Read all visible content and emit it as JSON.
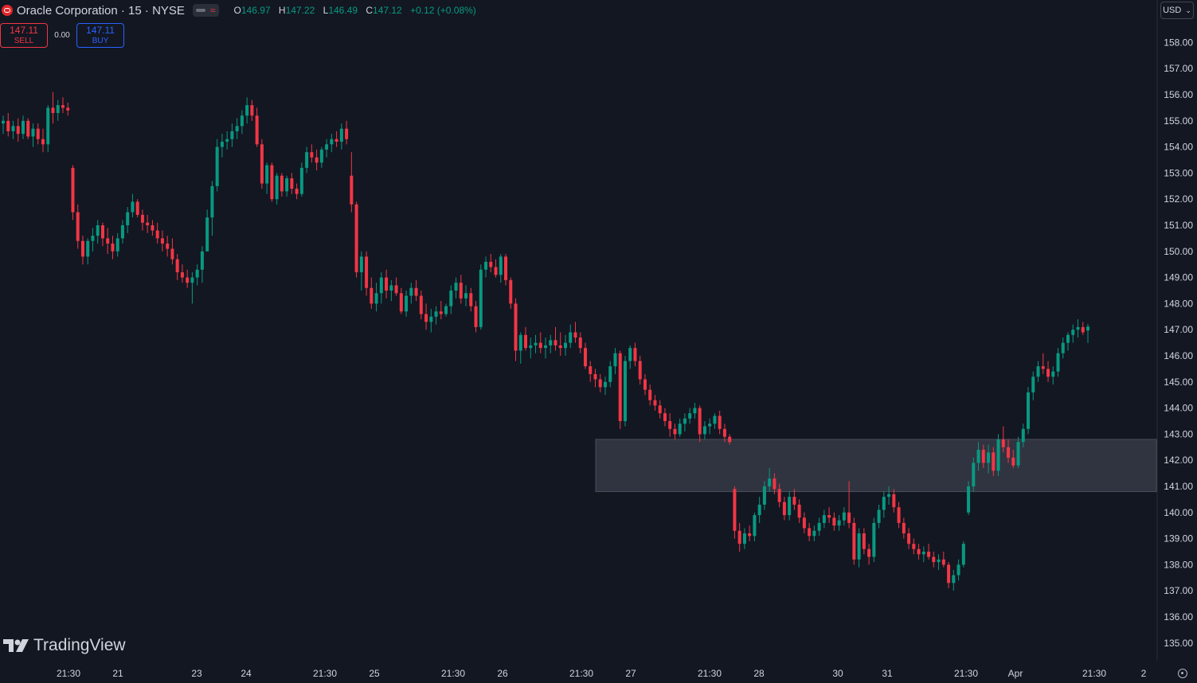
{
  "header": {
    "symbol": "Oracle Corporation · 15 · NYSE",
    "ohlc": {
      "o_label": "O",
      "o": "146.97",
      "h_label": "H",
      "h": "147.22",
      "l_label": "L",
      "l": "146.49",
      "c_label": "C",
      "c": "147.12",
      "change": "+0.12 (+0.08%)"
    },
    "chip_symbol": "≈"
  },
  "trade": {
    "sell_price": "147.11",
    "sell_label": "SELL",
    "spread": "0.00",
    "buy_price": "147.11",
    "buy_label": "BUY"
  },
  "currency": "USD",
  "branding": "TradingView",
  "colors": {
    "background": "#131722",
    "up": "#089981",
    "down": "#f23645",
    "zone": "#363a45"
  },
  "chart_data": {
    "type": "candlestick",
    "y_ticks": [
      135,
      136,
      137,
      138,
      139,
      140,
      141,
      142,
      143,
      144,
      145,
      146,
      147,
      148,
      149,
      150,
      151,
      152,
      153,
      154,
      155,
      156,
      157,
      158
    ],
    "x_ticks": [
      "21:30",
      "21",
      "23",
      "24",
      "21:30",
      "25",
      "21:30",
      "26",
      "21:30",
      "27",
      "21:30",
      "28",
      "30",
      "31",
      "21:30",
      "Apr",
      "21:30",
      "2"
    ],
    "zone": {
      "low": 140.8,
      "high": 142.8
    },
    "candles": [
      [
        154.9,
        155.2,
        154.5,
        155.0
      ],
      [
        155.0,
        155.3,
        154.4,
        154.6
      ],
      [
        154.6,
        155.0,
        154.3,
        154.8
      ],
      [
        154.8,
        155.1,
        154.2,
        154.5
      ],
      [
        154.5,
        155.2,
        154.3,
        155.0
      ],
      [
        155.0,
        155.1,
        154.3,
        154.4
      ],
      [
        154.4,
        154.9,
        154.0,
        154.7
      ],
      [
        154.7,
        154.9,
        154.1,
        154.3
      ],
      [
        154.3,
        154.7,
        153.8,
        154.1
      ],
      [
        154.1,
        155.6,
        153.8,
        155.5
      ],
      [
        155.5,
        156.1,
        154.9,
        155.3
      ],
      [
        155.3,
        155.8,
        155.0,
        155.6
      ],
      [
        155.6,
        155.9,
        155.3,
        155.5
      ],
      [
        155.5,
        155.7,
        155.2,
        155.4
      ],
      [
        153.2,
        153.3,
        151.2,
        151.5
      ],
      [
        151.5,
        151.8,
        150.1,
        150.4
      ],
      [
        150.4,
        150.6,
        149.5,
        149.8
      ],
      [
        149.8,
        150.5,
        149.5,
        150.4
      ],
      [
        150.4,
        150.9,
        150.0,
        150.6
      ],
      [
        150.6,
        151.2,
        150.3,
        151.0
      ],
      [
        151.0,
        151.1,
        150.2,
        150.5
      ],
      [
        150.5,
        150.9,
        149.9,
        150.3
      ],
      [
        150.3,
        150.6,
        149.7,
        150.0
      ],
      [
        150.0,
        150.7,
        149.8,
        150.5
      ],
      [
        150.5,
        151.2,
        150.3,
        151.0
      ],
      [
        151.0,
        151.7,
        150.7,
        151.5
      ],
      [
        151.5,
        152.2,
        151.3,
        151.9
      ],
      [
        151.9,
        152.0,
        151.3,
        151.4
      ],
      [
        151.4,
        151.6,
        150.8,
        151.1
      ],
      [
        151.1,
        151.4,
        150.7,
        151.0
      ],
      [
        151.0,
        151.2,
        150.6,
        150.8
      ],
      [
        150.8,
        151.1,
        150.3,
        150.5
      ],
      [
        150.5,
        150.8,
        150.0,
        150.3
      ],
      [
        150.3,
        150.6,
        149.8,
        150.1
      ],
      [
        150.1,
        150.5,
        149.5,
        149.7
      ],
      [
        149.7,
        149.9,
        148.9,
        149.2
      ],
      [
        149.2,
        149.5,
        148.8,
        149.0
      ],
      [
        149.0,
        149.3,
        148.6,
        148.8
      ],
      [
        148.8,
        149.2,
        148.0,
        149.0
      ],
      [
        149.0,
        149.5,
        148.7,
        149.3
      ],
      [
        149.3,
        150.2,
        148.8,
        150.0
      ],
      [
        150.0,
        151.6,
        150.0,
        151.3
      ],
      [
        151.3,
        152.7,
        150.6,
        152.5
      ],
      [
        152.5,
        154.3,
        152.3,
        154.0
      ],
      [
        154.0,
        154.5,
        153.6,
        154.2
      ],
      [
        154.2,
        154.6,
        153.9,
        154.3
      ],
      [
        154.3,
        154.9,
        154.0,
        154.6
      ],
      [
        154.6,
        155.1,
        154.3,
        154.8
      ],
      [
        154.8,
        155.4,
        154.5,
        155.2
      ],
      [
        155.2,
        155.9,
        154.9,
        155.6
      ],
      [
        155.6,
        155.8,
        155.0,
        155.2
      ],
      [
        155.2,
        155.5,
        154.0,
        154.1
      ],
      [
        154.1,
        154.3,
        152.4,
        152.6
      ],
      [
        152.6,
        153.4,
        152.2,
        153.3
      ],
      [
        153.3,
        153.4,
        151.9,
        152.0
      ],
      [
        152.0,
        153.0,
        151.8,
        152.9
      ],
      [
        152.9,
        153.0,
        152.1,
        152.3
      ],
      [
        152.3,
        152.9,
        152.1,
        152.8
      ],
      [
        152.8,
        153.0,
        152.2,
        152.4
      ],
      [
        152.4,
        152.6,
        152.0,
        152.2
      ],
      [
        152.2,
        153.4,
        152.1,
        153.2
      ],
      [
        153.2,
        154.0,
        153.0,
        153.8
      ],
      [
        153.8,
        154.1,
        153.4,
        153.6
      ],
      [
        153.6,
        153.9,
        153.1,
        153.4
      ],
      [
        153.4,
        154.0,
        153.2,
        153.9
      ],
      [
        153.9,
        154.3,
        153.6,
        154.1
      ],
      [
        154.1,
        154.5,
        153.8,
        154.3
      ],
      [
        154.3,
        154.6,
        154.0,
        154.2
      ],
      [
        154.2,
        154.9,
        153.9,
        154.7
      ],
      [
        154.7,
        155.0,
        154.1,
        154.3
      ],
      [
        152.9,
        153.8,
        151.5,
        151.8
      ],
      [
        151.8,
        151.9,
        149.0,
        149.2
      ],
      [
        149.2,
        150.0,
        148.5,
        149.8
      ],
      [
        149.8,
        150.0,
        148.3,
        148.6
      ],
      [
        148.6,
        149.0,
        147.8,
        148.0
      ],
      [
        148.0,
        148.8,
        147.7,
        148.4
      ],
      [
        148.4,
        149.2,
        148.0,
        149.0
      ],
      [
        149.0,
        149.3,
        148.2,
        148.5
      ],
      [
        148.5,
        148.9,
        148.1,
        148.7
      ],
      [
        148.7,
        149.0,
        148.3,
        148.4
      ],
      [
        148.4,
        148.6,
        147.6,
        147.7
      ],
      [
        147.7,
        148.5,
        147.5,
        148.3
      ],
      [
        148.3,
        148.8,
        148.0,
        148.6
      ],
      [
        148.6,
        148.9,
        148.1,
        148.3
      ],
      [
        148.3,
        148.5,
        147.4,
        147.6
      ],
      [
        147.6,
        148.0,
        147.0,
        147.3
      ],
      [
        147.3,
        147.8,
        146.9,
        147.5
      ],
      [
        147.5,
        147.9,
        147.2,
        147.7
      ],
      [
        147.7,
        148.1,
        147.4,
        147.6
      ],
      [
        147.6,
        148.0,
        147.5,
        147.9
      ],
      [
        147.9,
        148.7,
        147.6,
        148.5
      ],
      [
        148.5,
        149.0,
        148.2,
        148.8
      ],
      [
        148.8,
        149.1,
        148.0,
        148.2
      ],
      [
        148.2,
        148.7,
        147.9,
        148.4
      ],
      [
        148.4,
        148.6,
        147.7,
        147.9
      ],
      [
        147.9,
        148.1,
        146.9,
        147.1
      ],
      [
        147.1,
        149.5,
        147.0,
        149.3
      ],
      [
        149.3,
        149.8,
        149.0,
        149.6
      ],
      [
        149.6,
        149.9,
        149.2,
        149.4
      ],
      [
        149.4,
        149.7,
        149.0,
        149.1
      ],
      [
        149.1,
        149.9,
        148.8,
        149.8
      ],
      [
        149.8,
        149.9,
        148.7,
        148.9
      ],
      [
        148.9,
        149.0,
        147.8,
        148.0
      ],
      [
        148.0,
        148.2,
        145.8,
        146.2
      ],
      [
        146.2,
        146.9,
        145.7,
        146.8
      ],
      [
        146.8,
        147.1,
        146.2,
        146.3
      ],
      [
        146.3,
        146.7,
        145.9,
        146.4
      ],
      [
        146.4,
        146.8,
        146.1,
        146.5
      ],
      [
        146.5,
        146.9,
        146.1,
        146.3
      ],
      [
        146.3,
        146.7,
        145.9,
        146.4
      ],
      [
        146.4,
        146.8,
        146.1,
        146.6
      ],
      [
        146.6,
        147.1,
        146.2,
        146.4
      ],
      [
        146.4,
        146.9,
        146.0,
        146.3
      ],
      [
        146.3,
        146.8,
        146.0,
        146.5
      ],
      [
        146.5,
        147.2,
        146.3,
        146.9
      ],
      [
        146.9,
        147.3,
        146.5,
        146.7
      ],
      [
        146.7,
        146.9,
        146.1,
        146.3
      ],
      [
        146.3,
        146.5,
        145.5,
        145.6
      ],
      [
        145.6,
        145.8,
        145.0,
        145.3
      ],
      [
        145.3,
        145.5,
        144.8,
        145.1
      ],
      [
        145.1,
        145.3,
        144.6,
        144.8
      ],
      [
        144.8,
        145.2,
        144.5,
        145.0
      ],
      [
        145.0,
        145.8,
        144.8,
        145.6
      ],
      [
        145.6,
        146.3,
        145.3,
        146.1
      ],
      [
        146.1,
        146.2,
        143.2,
        143.5
      ],
      [
        143.5,
        146.0,
        143.3,
        145.8
      ],
      [
        145.8,
        146.4,
        145.5,
        146.3
      ],
      [
        146.3,
        146.5,
        145.6,
        145.8
      ],
      [
        145.8,
        146.0,
        144.9,
        145.1
      ],
      [
        145.1,
        145.3,
        144.5,
        144.7
      ],
      [
        144.7,
        144.9,
        144.1,
        144.3
      ],
      [
        144.3,
        144.5,
        143.9,
        144.1
      ],
      [
        144.1,
        144.3,
        143.6,
        143.8
      ],
      [
        143.8,
        144.0,
        143.3,
        143.5
      ],
      [
        143.5,
        143.8,
        142.9,
        143.2
      ],
      [
        143.2,
        143.4,
        142.8,
        143.0
      ],
      [
        143.0,
        143.6,
        142.9,
        143.4
      ],
      [
        143.4,
        143.8,
        143.1,
        143.6
      ],
      [
        143.6,
        144.0,
        143.4,
        143.8
      ],
      [
        143.8,
        144.2,
        143.6,
        144.0
      ],
      [
        144.0,
        144.1,
        142.7,
        143.0
      ],
      [
        143.0,
        143.5,
        142.8,
        143.3
      ],
      [
        143.3,
        143.6,
        143.0,
        143.4
      ],
      [
        143.4,
        143.8,
        143.2,
        143.7
      ],
      [
        143.7,
        143.9,
        143.0,
        143.2
      ],
      [
        143.2,
        143.4,
        142.7,
        142.9
      ],
      [
        142.9,
        143.0,
        142.6,
        142.7
      ],
      [
        140.9,
        141.0,
        139.0,
        139.3
      ],
      [
        139.3,
        139.6,
        138.5,
        138.8
      ],
      [
        138.8,
        139.4,
        138.6,
        139.2
      ],
      [
        139.2,
        139.5,
        138.9,
        139.1
      ],
      [
        139.1,
        140.0,
        138.9,
        139.9
      ],
      [
        139.9,
        140.6,
        139.6,
        140.3
      ],
      [
        140.3,
        141.2,
        140.1,
        141.0
      ],
      [
        141.0,
        141.7,
        140.8,
        141.3
      ],
      [
        141.3,
        141.5,
        140.7,
        140.9
      ],
      [
        140.9,
        141.1,
        140.2,
        140.4
      ],
      [
        140.4,
        140.6,
        139.7,
        139.9
      ],
      [
        139.9,
        140.8,
        139.7,
        140.6
      ],
      [
        140.6,
        140.9,
        140.1,
        140.3
      ],
      [
        140.3,
        140.5,
        139.6,
        139.8
      ],
      [
        139.8,
        140.0,
        139.2,
        139.4
      ],
      [
        139.4,
        139.6,
        138.9,
        139.1
      ],
      [
        139.1,
        139.5,
        138.9,
        139.3
      ],
      [
        139.3,
        139.8,
        139.1,
        139.6
      ],
      [
        139.6,
        140.1,
        139.4,
        139.9
      ],
      [
        139.9,
        140.2,
        139.6,
        139.8
      ],
      [
        139.8,
        140.0,
        139.3,
        139.5
      ],
      [
        139.5,
        139.9,
        139.3,
        139.7
      ],
      [
        139.7,
        140.2,
        139.5,
        140.0
      ],
      [
        140.0,
        141.2,
        139.4,
        139.6
      ],
      [
        139.6,
        139.8,
        138.0,
        138.2
      ],
      [
        138.2,
        139.4,
        137.9,
        139.2
      ],
      [
        139.2,
        139.4,
        138.4,
        138.6
      ],
      [
        138.6,
        138.8,
        138.0,
        138.3
      ],
      [
        138.3,
        139.8,
        138.1,
        139.6
      ],
      [
        139.6,
        140.3,
        139.4,
        140.1
      ],
      [
        140.1,
        140.8,
        139.8,
        140.6
      ],
      [
        140.6,
        141.0,
        140.3,
        140.7
      ],
      [
        140.7,
        140.9,
        140.0,
        140.2
      ],
      [
        140.2,
        140.4,
        139.4,
        139.6
      ],
      [
        139.6,
        139.8,
        139.0,
        139.2
      ],
      [
        139.2,
        139.4,
        138.6,
        138.8
      ],
      [
        138.8,
        139.0,
        138.4,
        138.6
      ],
      [
        138.6,
        138.8,
        138.2,
        138.4
      ],
      [
        138.4,
        138.7,
        138.1,
        138.5
      ],
      [
        138.5,
        138.8,
        138.2,
        138.3
      ],
      [
        138.3,
        138.5,
        137.9,
        138.1
      ],
      [
        138.1,
        138.4,
        137.8,
        138.2
      ],
      [
        138.2,
        138.5,
        137.9,
        138.0
      ],
      [
        138.0,
        138.1,
        137.1,
        137.3
      ],
      [
        137.3,
        137.8,
        137.0,
        137.6
      ],
      [
        137.6,
        138.2,
        137.4,
        138.0
      ],
      [
        138.0,
        138.9,
        137.9,
        138.8
      ],
      [
        140.0,
        141.2,
        139.9,
        141.0
      ],
      [
        141.0,
        142.1,
        140.8,
        141.9
      ],
      [
        141.9,
        142.7,
        141.6,
        142.4
      ],
      [
        142.4,
        142.6,
        141.7,
        141.9
      ],
      [
        141.9,
        142.6,
        141.5,
        142.3
      ],
      [
        142.3,
        142.5,
        141.4,
        141.6
      ],
      [
        141.6,
        143.0,
        141.4,
        142.8
      ],
      [
        142.8,
        143.3,
        142.3,
        142.5
      ],
      [
        142.5,
        142.8,
        141.9,
        142.1
      ],
      [
        142.1,
        142.4,
        141.7,
        141.8
      ],
      [
        141.8,
        142.9,
        141.7,
        142.7
      ],
      [
        142.7,
        143.4,
        142.5,
        143.2
      ],
      [
        143.2,
        144.8,
        143.0,
        144.6
      ],
      [
        144.6,
        145.4,
        144.3,
        145.2
      ],
      [
        145.2,
        145.8,
        145.0,
        145.6
      ],
      [
        145.6,
        146.1,
        145.3,
        145.5
      ],
      [
        145.5,
        145.8,
        145.0,
        145.2
      ],
      [
        145.2,
        145.6,
        144.9,
        145.4
      ],
      [
        145.4,
        146.3,
        145.2,
        146.1
      ],
      [
        146.1,
        146.7,
        145.9,
        146.5
      ],
      [
        146.5,
        146.9,
        146.2,
        146.8
      ],
      [
        146.8,
        147.2,
        146.5,
        147.0
      ],
      [
        147.0,
        147.4,
        146.7,
        147.1
      ],
      [
        147.1,
        147.3,
        146.8,
        146.9
      ],
      [
        146.97,
        147.22,
        146.49,
        147.12
      ]
    ]
  }
}
